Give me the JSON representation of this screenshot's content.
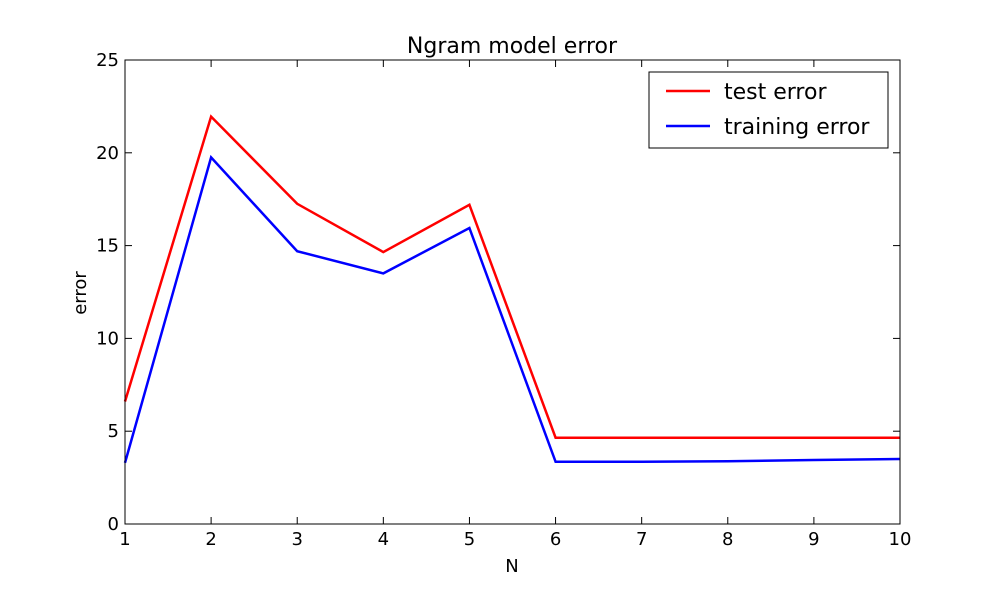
{
  "chart_data": {
    "type": "line",
    "title": "Ngram model error",
    "xlabel": "N",
    "ylabel": "error",
    "x": [
      1,
      2,
      3,
      4,
      5,
      6,
      7,
      8,
      9,
      10
    ],
    "xlim": [
      1,
      10
    ],
    "ylim": [
      0,
      25
    ],
    "xticks": [
      "1",
      "2",
      "3",
      "4",
      "5",
      "6",
      "7",
      "8",
      "9",
      "10"
    ],
    "yticks": [
      "0",
      "5",
      "10",
      "15",
      "20",
      "25"
    ],
    "grid": false,
    "legend_position": "top-right",
    "series": [
      {
        "name": "test error",
        "color": "#ff0000",
        "values": [
          6.6,
          21.95,
          17.25,
          14.65,
          17.2,
          4.65,
          4.65,
          4.65,
          4.65,
          4.65
        ]
      },
      {
        "name": "training error",
        "color": "#0000ff",
        "values": [
          3.3,
          19.75,
          14.7,
          13.5,
          15.95,
          3.35,
          3.35,
          3.38,
          3.45,
          3.5
        ]
      }
    ]
  }
}
